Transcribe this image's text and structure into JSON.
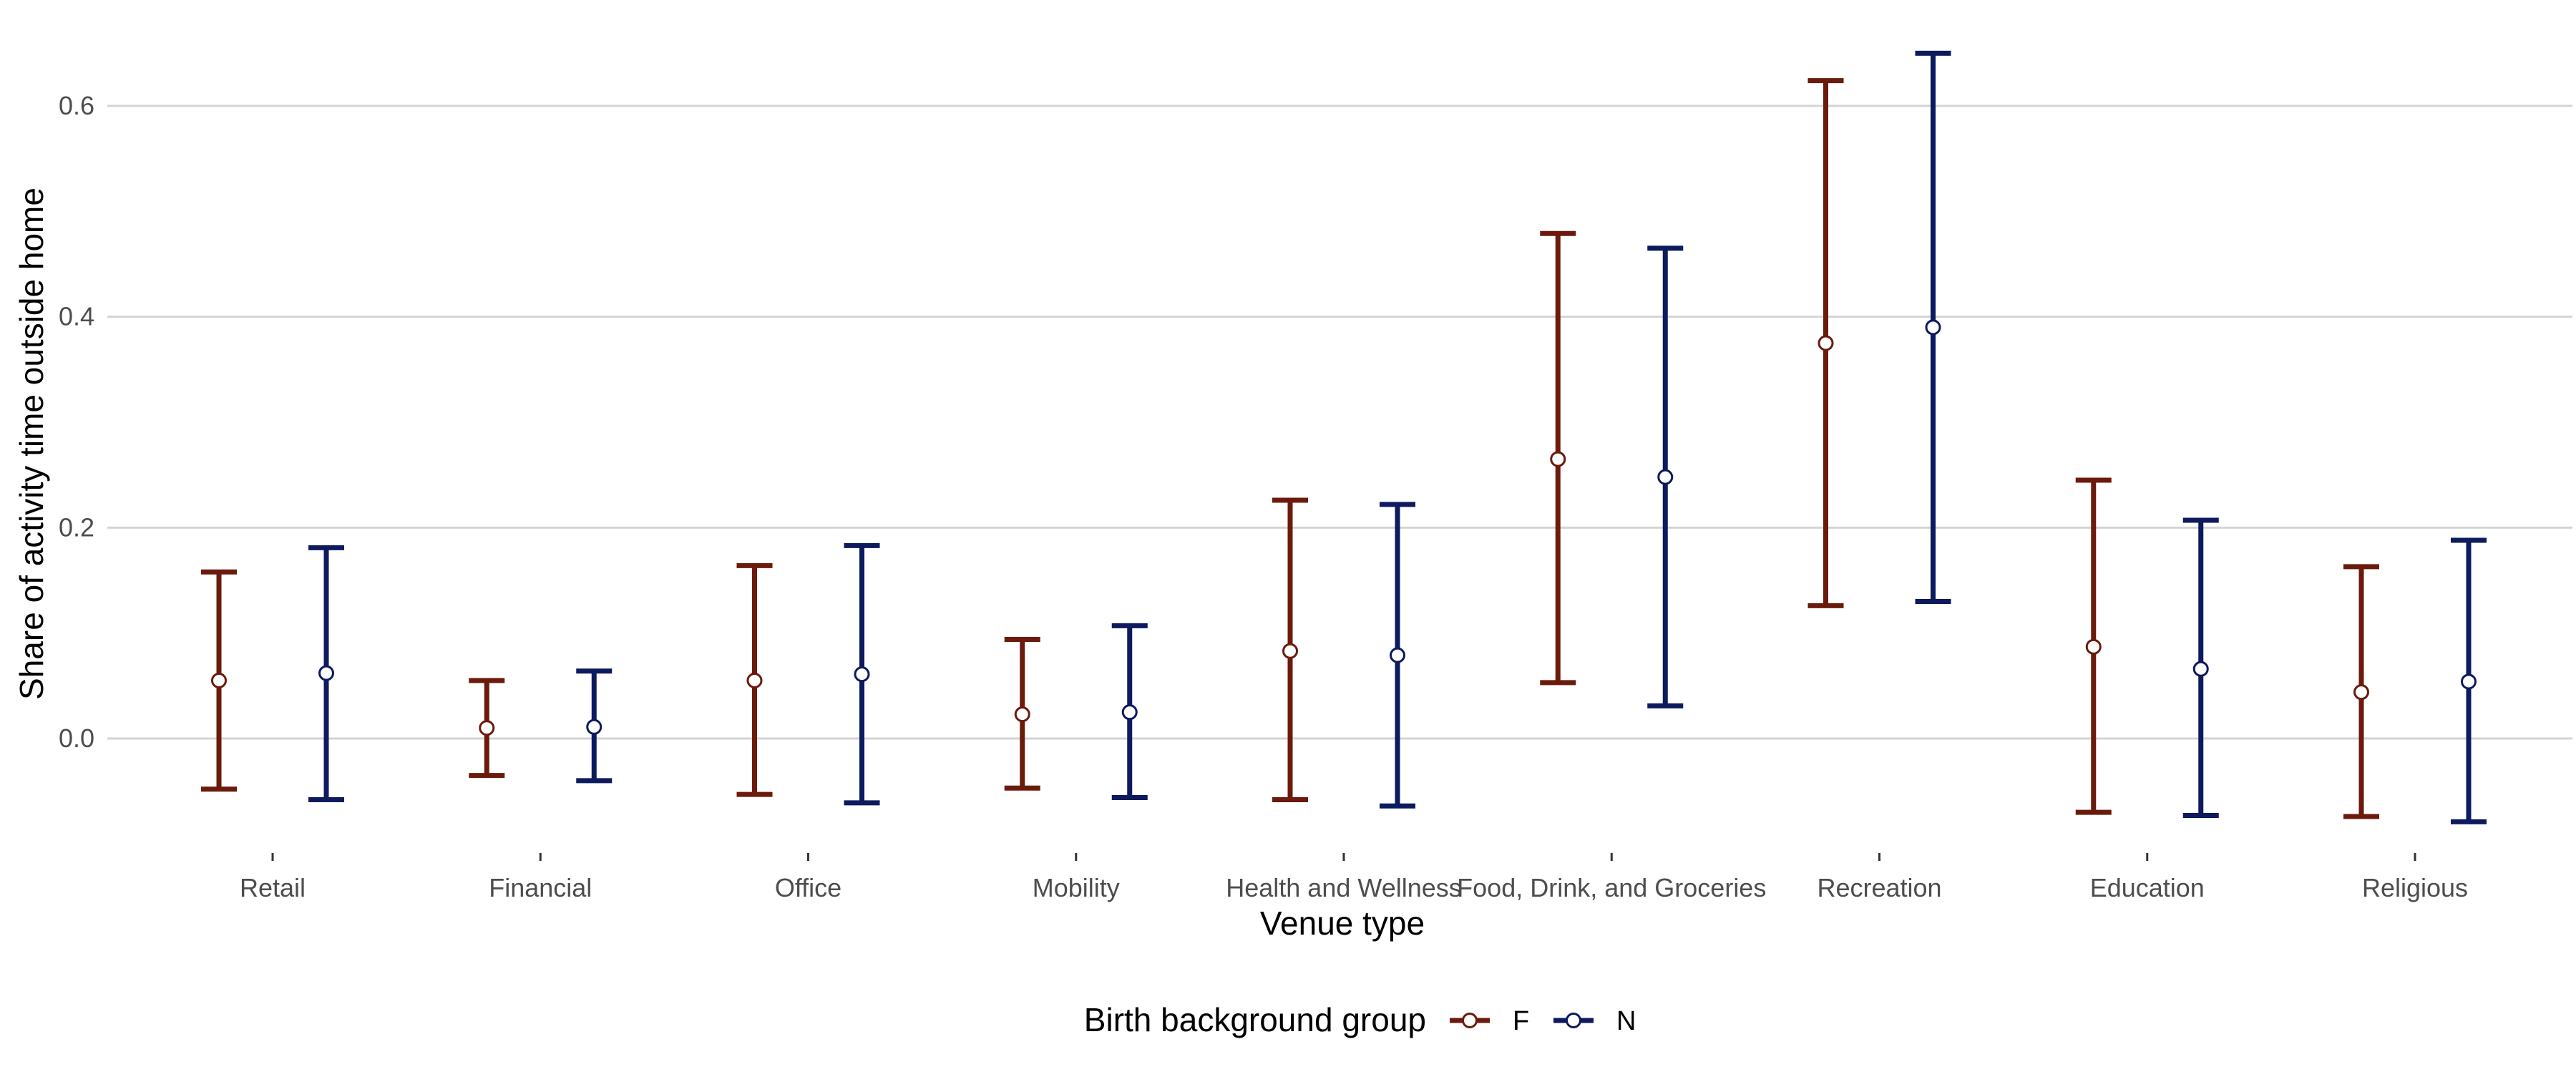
{
  "chart_data": {
    "type": "errorbar",
    "title": "",
    "xlabel": "Venue type",
    "ylabel": "Share of activity time outside home",
    "ylim": [
      -0.11,
      0.66
    ],
    "yticks": [
      "0.0",
      "0.2",
      "0.4",
      "0.6"
    ],
    "ytick_values": [
      0.0,
      0.2,
      0.4,
      0.6
    ],
    "grid": "horizontal major",
    "categories": [
      "Retail",
      "Financial",
      "Office",
      "Mobility",
      "Health and Wellness",
      "Food, Drink, and Groceries",
      "Recreation",
      "Education",
      "Religious"
    ],
    "legend": {
      "title": "Birth background group",
      "position": "bottom"
    },
    "series": [
      {
        "name": "F",
        "color": "#6b1a0c",
        "mean": [
          0.055,
          0.01,
          0.055,
          0.023,
          0.083,
          0.265,
          0.375,
          0.087,
          0.044
        ],
        "lower": [
          -0.048,
          -0.035,
          -0.053,
          -0.047,
          -0.058,
          0.053,
          0.126,
          -0.07,
          -0.074
        ],
        "upper": [
          0.158,
          0.055,
          0.164,
          0.094,
          0.226,
          0.479,
          0.624,
          0.245,
          0.163
        ]
      },
      {
        "name": "N",
        "color": "#0d1a5e",
        "mean": [
          0.062,
          0.011,
          0.061,
          0.025,
          0.079,
          0.248,
          0.39,
          0.066,
          0.054
        ],
        "lower": [
          -0.058,
          -0.04,
          -0.061,
          -0.056,
          -0.064,
          0.031,
          0.13,
          -0.073,
          -0.079
        ],
        "upper": [
          0.181,
          0.064,
          0.183,
          0.107,
          0.222,
          0.465,
          0.65,
          0.207,
          0.188
        ]
      }
    ]
  }
}
